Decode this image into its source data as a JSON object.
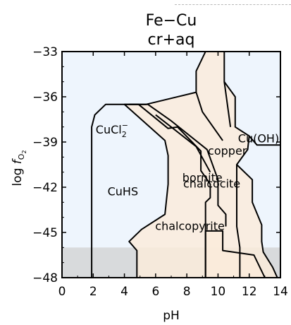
{
  "chart_data": {
    "type": "area",
    "title": "Fe−Cu",
    "subtitle": "cr+aq",
    "xlabel": "pH",
    "ylabel_prefix": "log ",
    "ylabel_var": "f",
    "ylabel_sub": "O",
    "ylabel_subsub": "2",
    "xlim": [
      0,
      14
    ],
    "ylim": [
      -48,
      -33
    ],
    "xticks": [
      0,
      2,
      4,
      6,
      8,
      10,
      12,
      14
    ],
    "yticks": [
      -48,
      -45,
      -42,
      -39,
      -36,
      -33
    ],
    "xtick_labels": [
      "0",
      "2",
      "4",
      "6",
      "8",
      "10",
      "12",
      "14"
    ],
    "ytick_labels": [
      "−48",
      "−45",
      "−42",
      "−39",
      "−36",
      "−33"
    ],
    "grid": false,
    "colors": {
      "aqueous": "#eef5fd",
      "mineral": "#fbebdb",
      "shade": "#d8dadc",
      "line": "#000000"
    },
    "shaded_band": [
      -48,
      -46
    ],
    "fields": [
      {
        "label": "CuHS",
        "x": 3.9,
        "y": -42.3
      },
      {
        "label": "chalcopyrite",
        "x": 8.2,
        "y": -44.6
      },
      {
        "label": "chalcocite",
        "x": 9.6,
        "y": -41.8
      },
      {
        "label": "bornite",
        "x": 9.0,
        "y": -41.4
      },
      {
        "label": "copper",
        "x": 10.6,
        "y": -39.6
      },
      {
        "label": "Cu(OH)",
        "x": 12.6,
        "y": -38.8
      }
    ],
    "cucl": {
      "base": "CuCl",
      "sub": "2",
      "sup": "−",
      "x": 3.2,
      "y": -38.2
    },
    "regions": [
      {
        "kind": "mineral",
        "points": [
          [
            9.2,
            -33
          ],
          [
            10.4,
            -33
          ],
          [
            10.4,
            -35
          ],
          [
            11.1,
            -36
          ],
          [
            11.1,
            -38
          ],
          [
            12.0,
            -38.6
          ],
          [
            11.9,
            -39.5
          ],
          [
            11.2,
            -40.5
          ],
          [
            12.2,
            -41.5
          ],
          [
            12.2,
            -43
          ],
          [
            12.8,
            -44.5
          ],
          [
            12.8,
            -45.6
          ],
          [
            12.9,
            -46.3
          ],
          [
            13.5,
            -47.3
          ],
          [
            13.8,
            -48
          ],
          [
            4.8,
            -48
          ],
          [
            4.8,
            -46.2
          ],
          [
            4.3,
            -45.6
          ],
          [
            5.1,
            -44.8
          ],
          [
            6.6,
            -43.8
          ],
          [
            6.8,
            -41.8
          ],
          [
            6.8,
            -39.9
          ],
          [
            6.6,
            -38.9
          ],
          [
            4.0,
            -36.5
          ],
          [
            5.4,
            -36.5
          ],
          [
            8.6,
            -35.7
          ],
          [
            8.6,
            -34.3
          ]
        ]
      },
      {
        "kind": "mineral",
        "points": [
          [
            9.2,
            -48
          ],
          [
            9.2,
            -44.9
          ],
          [
            10.3,
            -44.9
          ],
          [
            10.3,
            -46.2
          ],
          [
            12.3,
            -46.5
          ],
          [
            13.0,
            -48
          ]
        ]
      }
    ],
    "lines": [
      [
        [
          1.9,
          -48
        ],
        [
          1.9,
          -38.0
        ],
        [
          2.1,
          -37.2
        ],
        [
          2.8,
          -36.5
        ],
        [
          4.9,
          -36.5
        ],
        [
          6.8,
          -38.1
        ],
        [
          7.4,
          -38.0
        ],
        [
          8.9,
          -39.6
        ],
        [
          8.9,
          -40.9
        ],
        [
          9.5,
          -41.8
        ],
        [
          9.5,
          -42.7
        ],
        [
          9.2,
          -43.0
        ],
        [
          9.2,
          -48
        ]
      ],
      [
        [
          4.3,
          -36.5
        ],
        [
          5.5,
          -36.5
        ],
        [
          7.0,
          -37.6
        ],
        [
          9.3,
          -39.5
        ],
        [
          10.0,
          -41.5
        ],
        [
          10.0,
          -43.2
        ],
        [
          10.5,
          -43.8
        ],
        [
          10.5,
          -44.6
        ]
      ],
      [
        [
          6.0,
          -37.2
        ],
        [
          8.6,
          -39.3
        ],
        [
          9.5,
          -41.0
        ]
      ],
      [
        [
          8.6,
          -35.7
        ],
        [
          9.0,
          -37.0
        ],
        [
          10.3,
          -38.9
        ]
      ],
      [
        [
          10.4,
          -35.0
        ],
        [
          10.8,
          -38.0
        ]
      ],
      [
        [
          12.0,
          -38.6
        ],
        [
          12.5,
          -39.2
        ],
        [
          14.0,
          -39.2
        ]
      ],
      [
        [
          11.2,
          -40.5
        ],
        [
          11.2,
          -44.6
        ],
        [
          11.4,
          -46.0
        ],
        [
          11.4,
          -48
        ]
      ]
    ]
  }
}
